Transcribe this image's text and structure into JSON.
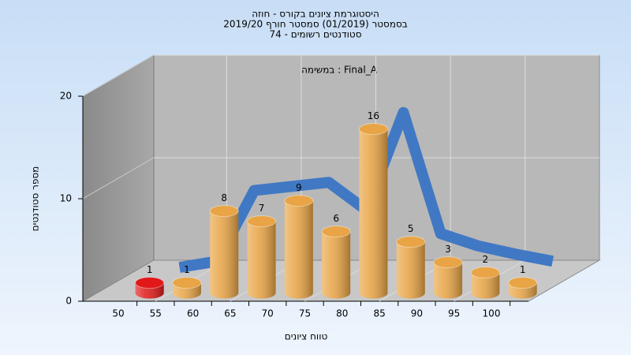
{
  "chart_data": {
    "type": "bar",
    "title": [
      "היסטוגרמת ציונים בקורס - חוזה",
      "בסמסטר  (01/2019)  סמסטר חורף 2019/20",
      "סטודנטים רשומים - 74"
    ],
    "annotation": "במשימה : Final_A",
    "x_label": "טווח ציונים",
    "y_label": "מספר סטודנטים",
    "categories": [
      "50",
      "55",
      "60",
      "65",
      "70",
      "75",
      "80",
      "85",
      "90",
      "95",
      "100"
    ],
    "values": [
      1,
      1,
      8,
      7,
      9,
      6,
      16,
      5,
      3,
      2,
      1
    ],
    "colors": [
      "#e01818",
      "#e8a445",
      "#e8a445",
      "#e8a445",
      "#e8a445",
      "#e8a445",
      "#e8a445",
      "#e8a445",
      "#e8a445",
      "#e8a445",
      "#e8a445"
    ],
    "curve": {
      "color": "#3a74c4",
      "values": [
        0.9,
        1.5,
        8.4,
        8.8,
        9.2,
        6.5,
        16,
        4.2,
        3,
        2.2,
        1.5
      ]
    },
    "ylim": [
      0,
      20
    ],
    "yticks": [
      0,
      10,
      20
    ],
    "grid": true
  }
}
